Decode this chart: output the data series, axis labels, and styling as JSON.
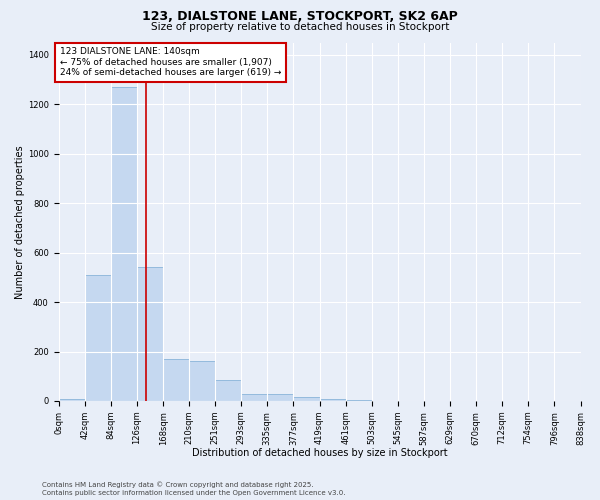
{
  "title_line1": "123, DIALSTONE LANE, STOCKPORT, SK2 6AP",
  "title_line2": "Size of property relative to detached houses in Stockport",
  "xlabel": "Distribution of detached houses by size in Stockport",
  "ylabel": "Number of detached properties",
  "bin_edges": [
    0,
    42,
    84,
    126,
    168,
    210,
    251,
    293,
    335,
    377,
    419,
    461,
    503,
    545,
    587,
    629,
    670,
    712,
    754,
    796,
    838
  ],
  "bin_labels": [
    "0sqm",
    "42sqm",
    "84sqm",
    "126sqm",
    "168sqm",
    "210sqm",
    "251sqm",
    "293sqm",
    "335sqm",
    "377sqm",
    "419sqm",
    "461sqm",
    "503sqm",
    "545sqm",
    "587sqm",
    "629sqm",
    "670sqm",
    "712sqm",
    "754sqm",
    "796sqm",
    "838sqm"
  ],
  "bar_heights": [
    10,
    510,
    1270,
    540,
    170,
    160,
    85,
    28,
    28,
    18,
    8,
    4,
    2,
    1,
    1,
    0,
    0,
    0,
    0,
    0
  ],
  "bar_color": "#c5d8f0",
  "bar_edge_color": "#7aaad4",
  "property_size": 140,
  "vline_color": "#cc0000",
  "ylim": [
    0,
    1450
  ],
  "yticks": [
    0,
    200,
    400,
    600,
    800,
    1000,
    1200,
    1400
  ],
  "annotation_text": "123 DIALSTONE LANE: 140sqm\n← 75% of detached houses are smaller (1,907)\n24% of semi-detached houses are larger (619) →",
  "annotation_box_facecolor": "#ffffff",
  "annotation_box_edgecolor": "#cc0000",
  "footer_line1": "Contains HM Land Registry data © Crown copyright and database right 2025.",
  "footer_line2": "Contains public sector information licensed under the Open Government Licence v3.0.",
  "background_color": "#e8eef8",
  "plot_bg_color": "#e8eef8",
  "grid_color": "#ffffff",
  "title_fontsize": 9,
  "subtitle_fontsize": 7.5,
  "axis_label_fontsize": 7,
  "tick_fontsize": 6,
  "annotation_fontsize": 6.5,
  "footer_fontsize": 5
}
